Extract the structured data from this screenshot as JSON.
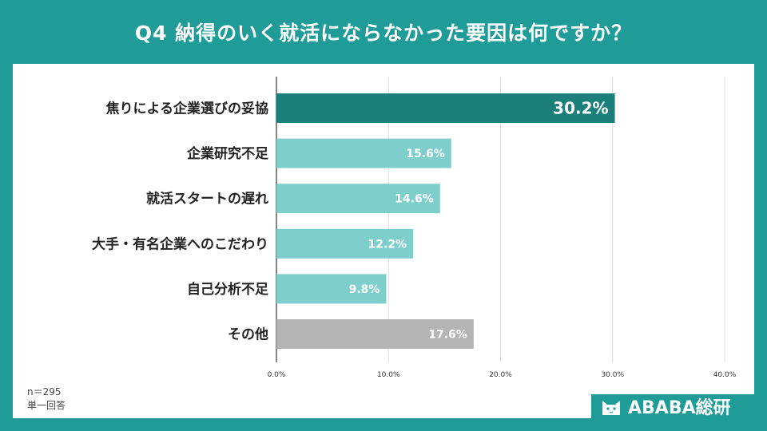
{
  "title": "Q4  納得のいく就活にならなかった要因は何ですか？",
  "notes": {
    "sample": "n＝295",
    "answer_type": "単一回答"
  },
  "brand": "ABABA総研",
  "colors": {
    "background": "#1f9c98",
    "highlight_bar": "#1b7f7a",
    "bar": "#7ecfcc",
    "other_bar": "#b4b4b4"
  },
  "chart_data": {
    "type": "bar",
    "orientation": "horizontal",
    "categories": [
      "焦りによる企業選びの妥協",
      "企業研究不足",
      "就活スタートの遅れ",
      "大手・有名企業へのこだわり",
      "自己分析不足",
      "その他"
    ],
    "values": [
      30.2,
      15.6,
      14.6,
      12.2,
      9.8,
      17.6
    ],
    "value_labels": [
      "30.2%",
      "15.6%",
      "14.6%",
      "12.2%",
      "9.8%",
      "17.6%"
    ],
    "xlim": [
      0,
      40
    ],
    "ticks": [
      0,
      10,
      20,
      30,
      40
    ],
    "tick_labels": [
      "0.0%",
      "10.0%",
      "20.0%",
      "30.0%",
      "40.0%"
    ],
    "grid": true,
    "xlabel": "",
    "ylabel": ""
  }
}
